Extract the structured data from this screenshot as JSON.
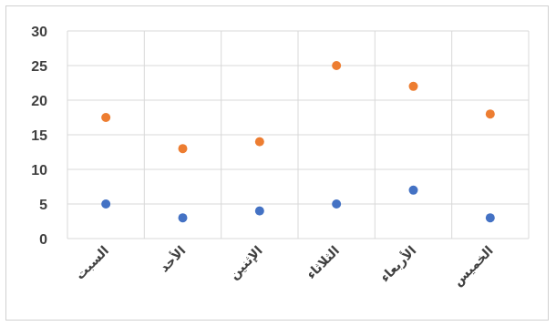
{
  "chart_data": {
    "type": "scatter",
    "categories": [
      "السبت",
      "الأحد",
      "الإثنين",
      "الثلاثاء",
      "الأربعاء",
      "الخميس"
    ],
    "series": [
      {
        "values": [
          5,
          3,
          4,
          5,
          7,
          3
        ],
        "color": "#4472C4"
      },
      {
        "values": [
          17.5,
          13,
          14,
          25,
          22,
          18
        ],
        "color": "#ED7D31"
      }
    ],
    "yticks": [
      "0",
      "5",
      "10",
      "15",
      "20",
      "25",
      "30"
    ],
    "ylim": [
      0,
      30
    ],
    "grid": true,
    "legend": "none",
    "gridline_color": "#d9d9d9"
  }
}
